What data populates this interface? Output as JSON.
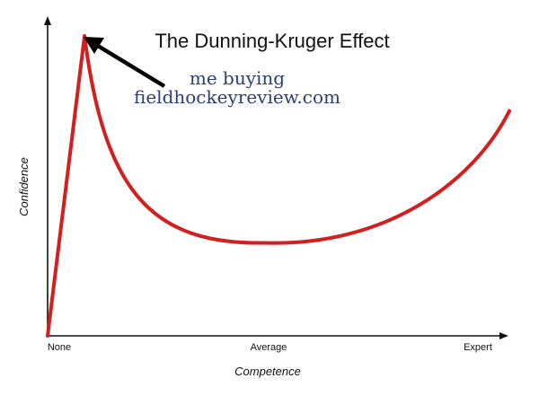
{
  "chart_data": {
    "type": "line",
    "title": "The Dunning-Kruger Effect",
    "xlabel": "Competence",
    "ylabel": "Confidence",
    "x_ticks": [
      "None",
      "Average",
      "Expert"
    ],
    "xlim": [
      0,
      100
    ],
    "ylim": [
      0,
      100
    ],
    "grid": false,
    "series": [
      {
        "color": "#d21f1f",
        "points": [
          {
            "x": 0,
            "y": 0
          },
          {
            "x": 8,
            "y": 100
          },
          {
            "x": 47,
            "y": 31
          },
          {
            "x": 100,
            "y": 75
          }
        ]
      }
    ],
    "annotation": {
      "lines": [
        "me buying",
        "fieldhockeyreview.com"
      ],
      "arrow_target": {
        "x": 8,
        "y": 100
      }
    }
  },
  "colors": {
    "curve": "#d21f1f",
    "axis": "#111111",
    "arrow": "#000000",
    "annotation_text": "#2c3e73"
  }
}
